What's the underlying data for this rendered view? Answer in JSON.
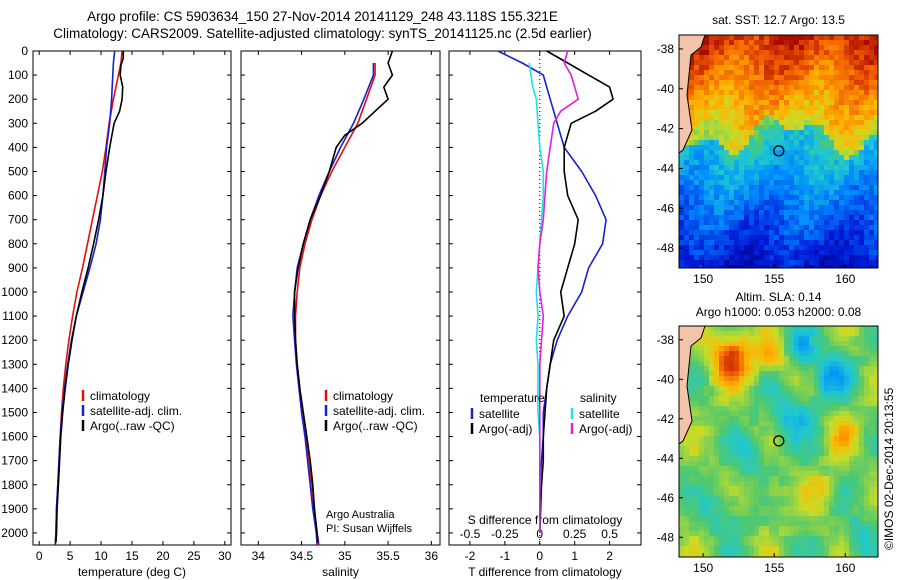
{
  "header": {
    "title_line1": "Argo profile: CS 5903634_150 27-Nov-2014 20141129_248 43.118S 155.321E",
    "title_line2": "Climatology: CARS2009. Satellite-adjusted climatology: synTS_20141125.nc (2.5d earlier)"
  },
  "colors": {
    "climatology": "#e01010",
    "satellite": "#1a20d0",
    "argo": "#000000",
    "satellite_salinity": "#20e0e0",
    "argo_adj_salinity": "#e020e0"
  },
  "chart_data": [
    {
      "type": "line",
      "id": "temperature",
      "xlabel": "temperature (deg C)",
      "ylim": [
        2050,
        0
      ],
      "xlim": [
        -1,
        31
      ],
      "xticks": [
        0,
        5,
        10,
        15,
        20,
        25,
        30
      ],
      "yticks": [
        0,
        100,
        200,
        300,
        400,
        500,
        600,
        700,
        800,
        900,
        1000,
        1100,
        1200,
        1300,
        1400,
        1500,
        1600,
        1700,
        1800,
        1900,
        2000
      ],
      "legend": [
        "climatology",
        "satellite-adj. clim.",
        "Argo(..raw -QC)"
      ],
      "legend_position": "lower-center",
      "series": [
        {
          "name": "climatology",
          "color": "#e01010",
          "points": [
            [
              13.4,
              0
            ],
            [
              13.2,
              50
            ],
            [
              12.8,
              100
            ],
            [
              12.0,
              200
            ],
            [
              11.3,
              300
            ],
            [
              10.8,
              400
            ],
            [
              10.2,
              500
            ],
            [
              9.4,
              600
            ],
            [
              8.6,
              700
            ],
            [
              7.8,
              800
            ],
            [
              7.0,
              900
            ],
            [
              6.1,
              1000
            ],
            [
              5.4,
              1100
            ],
            [
              4.8,
              1200
            ],
            [
              4.3,
              1300
            ],
            [
              3.9,
              1400
            ],
            [
              3.6,
              1500
            ],
            [
              3.4,
              1600
            ],
            [
              3.2,
              1700
            ],
            [
              3.0,
              1800
            ],
            [
              2.8,
              1900
            ],
            [
              2.7,
              2000
            ],
            [
              2.6,
              2050
            ]
          ]
        },
        {
          "name": "satellite-adj. clim.",
          "color": "#1a20d0",
          "points": [
            [
              12.2,
              0
            ],
            [
              12.0,
              50
            ],
            [
              11.9,
              100
            ],
            [
              11.7,
              200
            ],
            [
              11.4,
              300
            ],
            [
              10.9,
              400
            ],
            [
              10.6,
              500
            ],
            [
              10.3,
              600
            ],
            [
              9.9,
              700
            ],
            [
              9.2,
              800
            ],
            [
              8.2,
              900
            ],
            [
              7.1,
              1000
            ],
            [
              6.0,
              1100
            ],
            [
              5.2,
              1200
            ],
            [
              4.6,
              1300
            ],
            [
              4.1,
              1400
            ],
            [
              3.7,
              1500
            ],
            [
              3.4,
              1600
            ],
            [
              3.2,
              1700
            ],
            [
              3.0,
              1800
            ],
            [
              2.8,
              1900
            ],
            [
              2.7,
              2000
            ],
            [
              2.6,
              2050
            ]
          ]
        },
        {
          "name": "Argo(..raw -QC)",
          "color": "#000000",
          "points": [
            [
              13.6,
              0
            ],
            [
              13.6,
              30
            ],
            [
              13.2,
              60
            ],
            [
              13.1,
              100
            ],
            [
              13.5,
              150
            ],
            [
              13.4,
              200
            ],
            [
              13.0,
              250
            ],
            [
              12.1,
              300
            ],
            [
              11.4,
              400
            ],
            [
              10.8,
              500
            ],
            [
              10.3,
              600
            ],
            [
              9.6,
              700
            ],
            [
              8.8,
              800
            ],
            [
              7.9,
              900
            ],
            [
              6.9,
              1000
            ],
            [
              6.0,
              1100
            ],
            [
              5.3,
              1200
            ],
            [
              4.7,
              1300
            ],
            [
              4.2,
              1400
            ],
            [
              3.8,
              1500
            ],
            [
              3.5,
              1600
            ],
            [
              3.3,
              1700
            ],
            [
              3.1,
              1800
            ],
            [
              2.9,
              1900
            ],
            [
              2.8,
              2000
            ],
            [
              2.7,
              2040
            ]
          ]
        }
      ]
    },
    {
      "type": "line",
      "id": "salinity",
      "xlabel": "salinity",
      "ylim": [
        2050,
        0
      ],
      "xlim": [
        33.8,
        36.1
      ],
      "xticks": [
        34,
        34.5,
        35,
        35.5,
        36
      ],
      "legend": [
        "climatology",
        "satellite-adj. clim.",
        "Argo(..raw -QC)"
      ],
      "legend_position": "lower-right",
      "annotation": [
        "Argo Australia",
        "PI: Susan Wijffels"
      ],
      "series": [
        {
          "name": "climatology",
          "color": "#e01010",
          "points": [
            [
              35.35,
              50
            ],
            [
              35.35,
              100
            ],
            [
              35.25,
              200
            ],
            [
              35.15,
              300
            ],
            [
              35.0,
              400
            ],
            [
              34.85,
              500
            ],
            [
              34.72,
              600
            ],
            [
              34.62,
              700
            ],
            [
              34.54,
              800
            ],
            [
              34.48,
              900
            ],
            [
              34.45,
              1000
            ],
            [
              34.43,
              1100
            ],
            [
              34.43,
              1200
            ],
            [
              34.45,
              1300
            ],
            [
              34.48,
              1400
            ],
            [
              34.5,
              1500
            ],
            [
              34.55,
              1600
            ],
            [
              34.58,
              1700
            ],
            [
              34.62,
              1800
            ],
            [
              34.64,
              1900
            ],
            [
              34.68,
              2000
            ],
            [
              34.7,
              2050
            ]
          ]
        },
        {
          "name": "satellite-adj. clim.",
          "color": "#1a20d0",
          "points": [
            [
              35.33,
              50
            ],
            [
              35.33,
              100
            ],
            [
              35.22,
              200
            ],
            [
              35.1,
              300
            ],
            [
              34.95,
              400
            ],
            [
              34.82,
              500
            ],
            [
              34.7,
              600
            ],
            [
              34.6,
              700
            ],
            [
              34.52,
              800
            ],
            [
              34.45,
              900
            ],
            [
              34.42,
              1000
            ],
            [
              34.4,
              1100
            ],
            [
              34.42,
              1200
            ],
            [
              34.44,
              1300
            ],
            [
              34.47,
              1400
            ],
            [
              34.5,
              1500
            ],
            [
              34.54,
              1600
            ],
            [
              34.57,
              1700
            ],
            [
              34.6,
              1800
            ],
            [
              34.63,
              1900
            ],
            [
              34.67,
              2000
            ],
            [
              34.68,
              2050
            ]
          ]
        },
        {
          "name": "Argo(..raw -QC)",
          "color": "#000000",
          "points": [
            [
              35.55,
              0
            ],
            [
              35.5,
              50
            ],
            [
              35.55,
              100
            ],
            [
              35.45,
              150
            ],
            [
              35.5,
              200
            ],
            [
              35.35,
              250
            ],
            [
              35.2,
              300
            ],
            [
              35.0,
              350
            ],
            [
              34.9,
              400
            ],
            [
              34.82,
              500
            ],
            [
              34.72,
              600
            ],
            [
              34.6,
              700
            ],
            [
              34.52,
              800
            ],
            [
              34.46,
              900
            ],
            [
              34.42,
              1000
            ],
            [
              34.42,
              1100
            ],
            [
              34.43,
              1200
            ],
            [
              34.45,
              1300
            ],
            [
              34.48,
              1400
            ],
            [
              34.52,
              1500
            ],
            [
              34.56,
              1600
            ],
            [
              34.6,
              1700
            ],
            [
              34.63,
              1800
            ],
            [
              34.65,
              1900
            ],
            [
              34.68,
              2000
            ],
            [
              34.69,
              2040
            ]
          ]
        }
      ]
    },
    {
      "type": "line",
      "id": "difference",
      "xlabel": "T difference from climatology",
      "top_label": "S difference from climatology",
      "ylim": [
        2050,
        0
      ],
      "xlim": [
        -2.6,
        2.9
      ],
      "xticks": [
        -2,
        -1,
        0,
        1,
        2
      ],
      "top_ticks": [
        "-0.5",
        "-0.25",
        "0",
        "0.25",
        "0.5"
      ],
      "top_ticks_pos": [
        -2,
        -1,
        0,
        1,
        2
      ],
      "legend_groups": [
        {
          "title": "temperature",
          "items": [
            "satellite",
            "Argo(-adj)"
          ]
        },
        {
          "title": "salinity",
          "items": [
            "satellite",
            "Argo(-adj)"
          ]
        }
      ],
      "legend_position": "lower-center",
      "series": [
        {
          "name": "T satellite",
          "color": "#1a20d0",
          "points": [
            [
              -1.2,
              0
            ],
            [
              -0.5,
              50
            ],
            [
              0.1,
              100
            ],
            [
              0.3,
              200
            ],
            [
              0.5,
              300
            ],
            [
              0.7,
              400
            ],
            [
              1.2,
              500
            ],
            [
              1.6,
              600
            ],
            [
              1.9,
              700
            ],
            [
              1.8,
              800
            ],
            [
              1.4,
              900
            ],
            [
              1.2,
              1000
            ],
            [
              0.8,
              1100
            ],
            [
              0.5,
              1200
            ],
            [
              0.3,
              1300
            ],
            [
              0.2,
              1400
            ],
            [
              0.1,
              1500
            ],
            [
              0.1,
              1600
            ],
            [
              0.05,
              1700
            ],
            [
              0.0,
              1800
            ],
            [
              0.0,
              2000
            ]
          ]
        },
        {
          "name": "T Argo(-adj)",
          "color": "#000000",
          "points": [
            [
              0.2,
              0
            ],
            [
              0.8,
              50
            ],
            [
              1.4,
              100
            ],
            [
              2.0,
              150
            ],
            [
              2.1,
              200
            ],
            [
              1.6,
              250
            ],
            [
              0.9,
              300
            ],
            [
              0.7,
              400
            ],
            [
              0.7,
              500
            ],
            [
              0.8,
              600
            ],
            [
              1.1,
              700
            ],
            [
              1.0,
              800
            ],
            [
              0.8,
              900
            ],
            [
              0.6,
              1000
            ],
            [
              0.7,
              1100
            ],
            [
              0.4,
              1200
            ],
            [
              0.3,
              1300
            ],
            [
              0.2,
              1400
            ],
            [
              0.15,
              1500
            ],
            [
              0.1,
              1600
            ],
            [
              0.1,
              1700
            ],
            [
              0.05,
              1800
            ],
            [
              0.0,
              2000
            ]
          ]
        },
        {
          "name": "S satellite",
          "color": "#20e0e0",
          "points": [
            [
              -0.3,
              50
            ],
            [
              -0.25,
              100
            ],
            [
              -0.2,
              150
            ],
            [
              -0.1,
              200
            ],
            [
              -0.05,
              300
            ],
            [
              0.0,
              400
            ],
            [
              0.1,
              500
            ],
            [
              0.1,
              600
            ],
            [
              0.05,
              700
            ],
            [
              0.0,
              800
            ],
            [
              -0.05,
              900
            ],
            [
              -0.1,
              1000
            ],
            [
              -0.05,
              1100
            ],
            [
              -0.1,
              1200
            ],
            [
              -0.05,
              1300
            ],
            [
              -0.05,
              1400
            ],
            [
              -0.05,
              1500
            ],
            [
              0.0,
              1600
            ],
            [
              0.0,
              1800
            ],
            [
              0.0,
              2000
            ]
          ]
        },
        {
          "name": "S Argo(-adj)",
          "color": "#e020e0",
          "points": [
            [
              0.8,
              0
            ],
            [
              0.7,
              50
            ],
            [
              0.9,
              100
            ],
            [
              1.0,
              150
            ],
            [
              1.1,
              200
            ],
            [
              0.6,
              250
            ],
            [
              0.4,
              300
            ],
            [
              0.3,
              400
            ],
            [
              0.2,
              500
            ],
            [
              0.15,
              600
            ],
            [
              0.1,
              700
            ],
            [
              0.0,
              800
            ],
            [
              -0.05,
              900
            ],
            [
              0.0,
              1000
            ],
            [
              0.1,
              1100
            ],
            [
              0.05,
              1200
            ],
            [
              0.0,
              1300
            ],
            [
              0.0,
              1500
            ],
            [
              0.0,
              2000
            ]
          ]
        }
      ]
    },
    {
      "type": "heatmap",
      "id": "sst-map",
      "title": "sat. SST: 12.7 Argo: 13.5",
      "xticks": [
        "150",
        "155",
        "160"
      ],
      "yticks": [
        "-38",
        "-40",
        "-42",
        "-44",
        "-46",
        "-48"
      ],
      "marker": {
        "lon": 155.321,
        "lat": -43.118
      }
    },
    {
      "type": "heatmap",
      "id": "sla-map",
      "title_line1": "Altim. SLA: 0.14",
      "title_line2": "Argo h1000: 0.053 h2000: 0.08",
      "xticks": [
        "150",
        "155",
        "160"
      ],
      "yticks": [
        "-38",
        "-40",
        "-42",
        "-44",
        "-46",
        "-48"
      ],
      "marker": {
        "lon": 155.321,
        "lat": -43.118
      }
    }
  ],
  "footer": {
    "stamp": "©IMOS 02-Dec-2014 20:13:55"
  }
}
